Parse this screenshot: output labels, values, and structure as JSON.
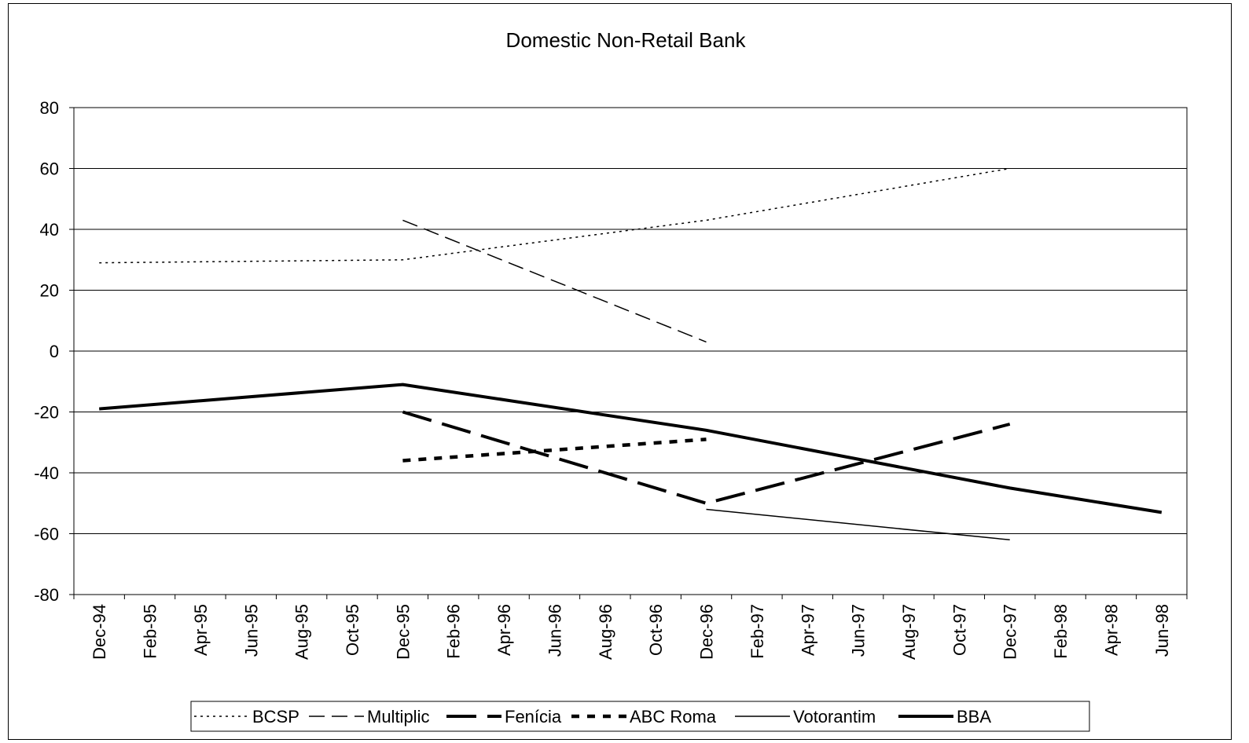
{
  "chart_data": {
    "type": "line",
    "title": "Domestic Non-Retail Bank",
    "xlabel": "",
    "ylabel": "",
    "ylim": [
      -80,
      80
    ],
    "yticks": [
      80,
      60,
      40,
      20,
      0,
      -20,
      -40,
      -60,
      -80
    ],
    "grid": true,
    "legend_position": "bottom",
    "categories": [
      "Dec-94",
      "Feb-95",
      "Apr-95",
      "Jun-95",
      "Aug-95",
      "Oct-95",
      "Dec-95",
      "Feb-96",
      "Apr-96",
      "Jun-96",
      "Aug-96",
      "Oct-96",
      "Dec-96",
      "Feb-97",
      "Apr-97",
      "Jun-97",
      "Aug-97",
      "Oct-97",
      "Dec-97",
      "Feb-98",
      "Apr-98",
      "Jun-98"
    ],
    "series": [
      {
        "name": "BCSP",
        "style": "dotted-thin",
        "color": "#000000",
        "points": [
          [
            "Dec-94",
            29
          ],
          [
            "Dec-95",
            30
          ],
          [
            "Dec-96",
            43
          ],
          [
            "Dec-97",
            60
          ]
        ]
      },
      {
        "name": "Multiplic",
        "style": "dashed-thin",
        "color": "#000000",
        "points": [
          [
            "Dec-95",
            43
          ],
          [
            "Dec-96",
            3
          ]
        ]
      },
      {
        "name": "Fenícia",
        "style": "dashed-thick",
        "color": "#000000",
        "points": [
          [
            "Dec-95",
            -20
          ],
          [
            "Dec-96",
            -50
          ],
          [
            "Dec-97",
            -24
          ]
        ]
      },
      {
        "name": "ABC Roma",
        "style": "dotted-thick",
        "color": "#000000",
        "points": [
          [
            "Dec-95",
            -36
          ],
          [
            "Dec-96",
            -29
          ]
        ]
      },
      {
        "name": "Votorantim",
        "style": "solid-thin",
        "color": "#000000",
        "points": [
          [
            "Dec-96",
            -52
          ],
          [
            "Dec-97",
            -62
          ]
        ]
      },
      {
        "name": "BBA",
        "style": "solid-thick",
        "color": "#000000",
        "points": [
          [
            "Dec-94",
            -19
          ],
          [
            "Dec-95",
            -11
          ],
          [
            "Dec-96",
            -26
          ],
          [
            "Dec-97",
            -45
          ],
          [
            "Jun-98",
            -53
          ]
        ]
      }
    ]
  }
}
